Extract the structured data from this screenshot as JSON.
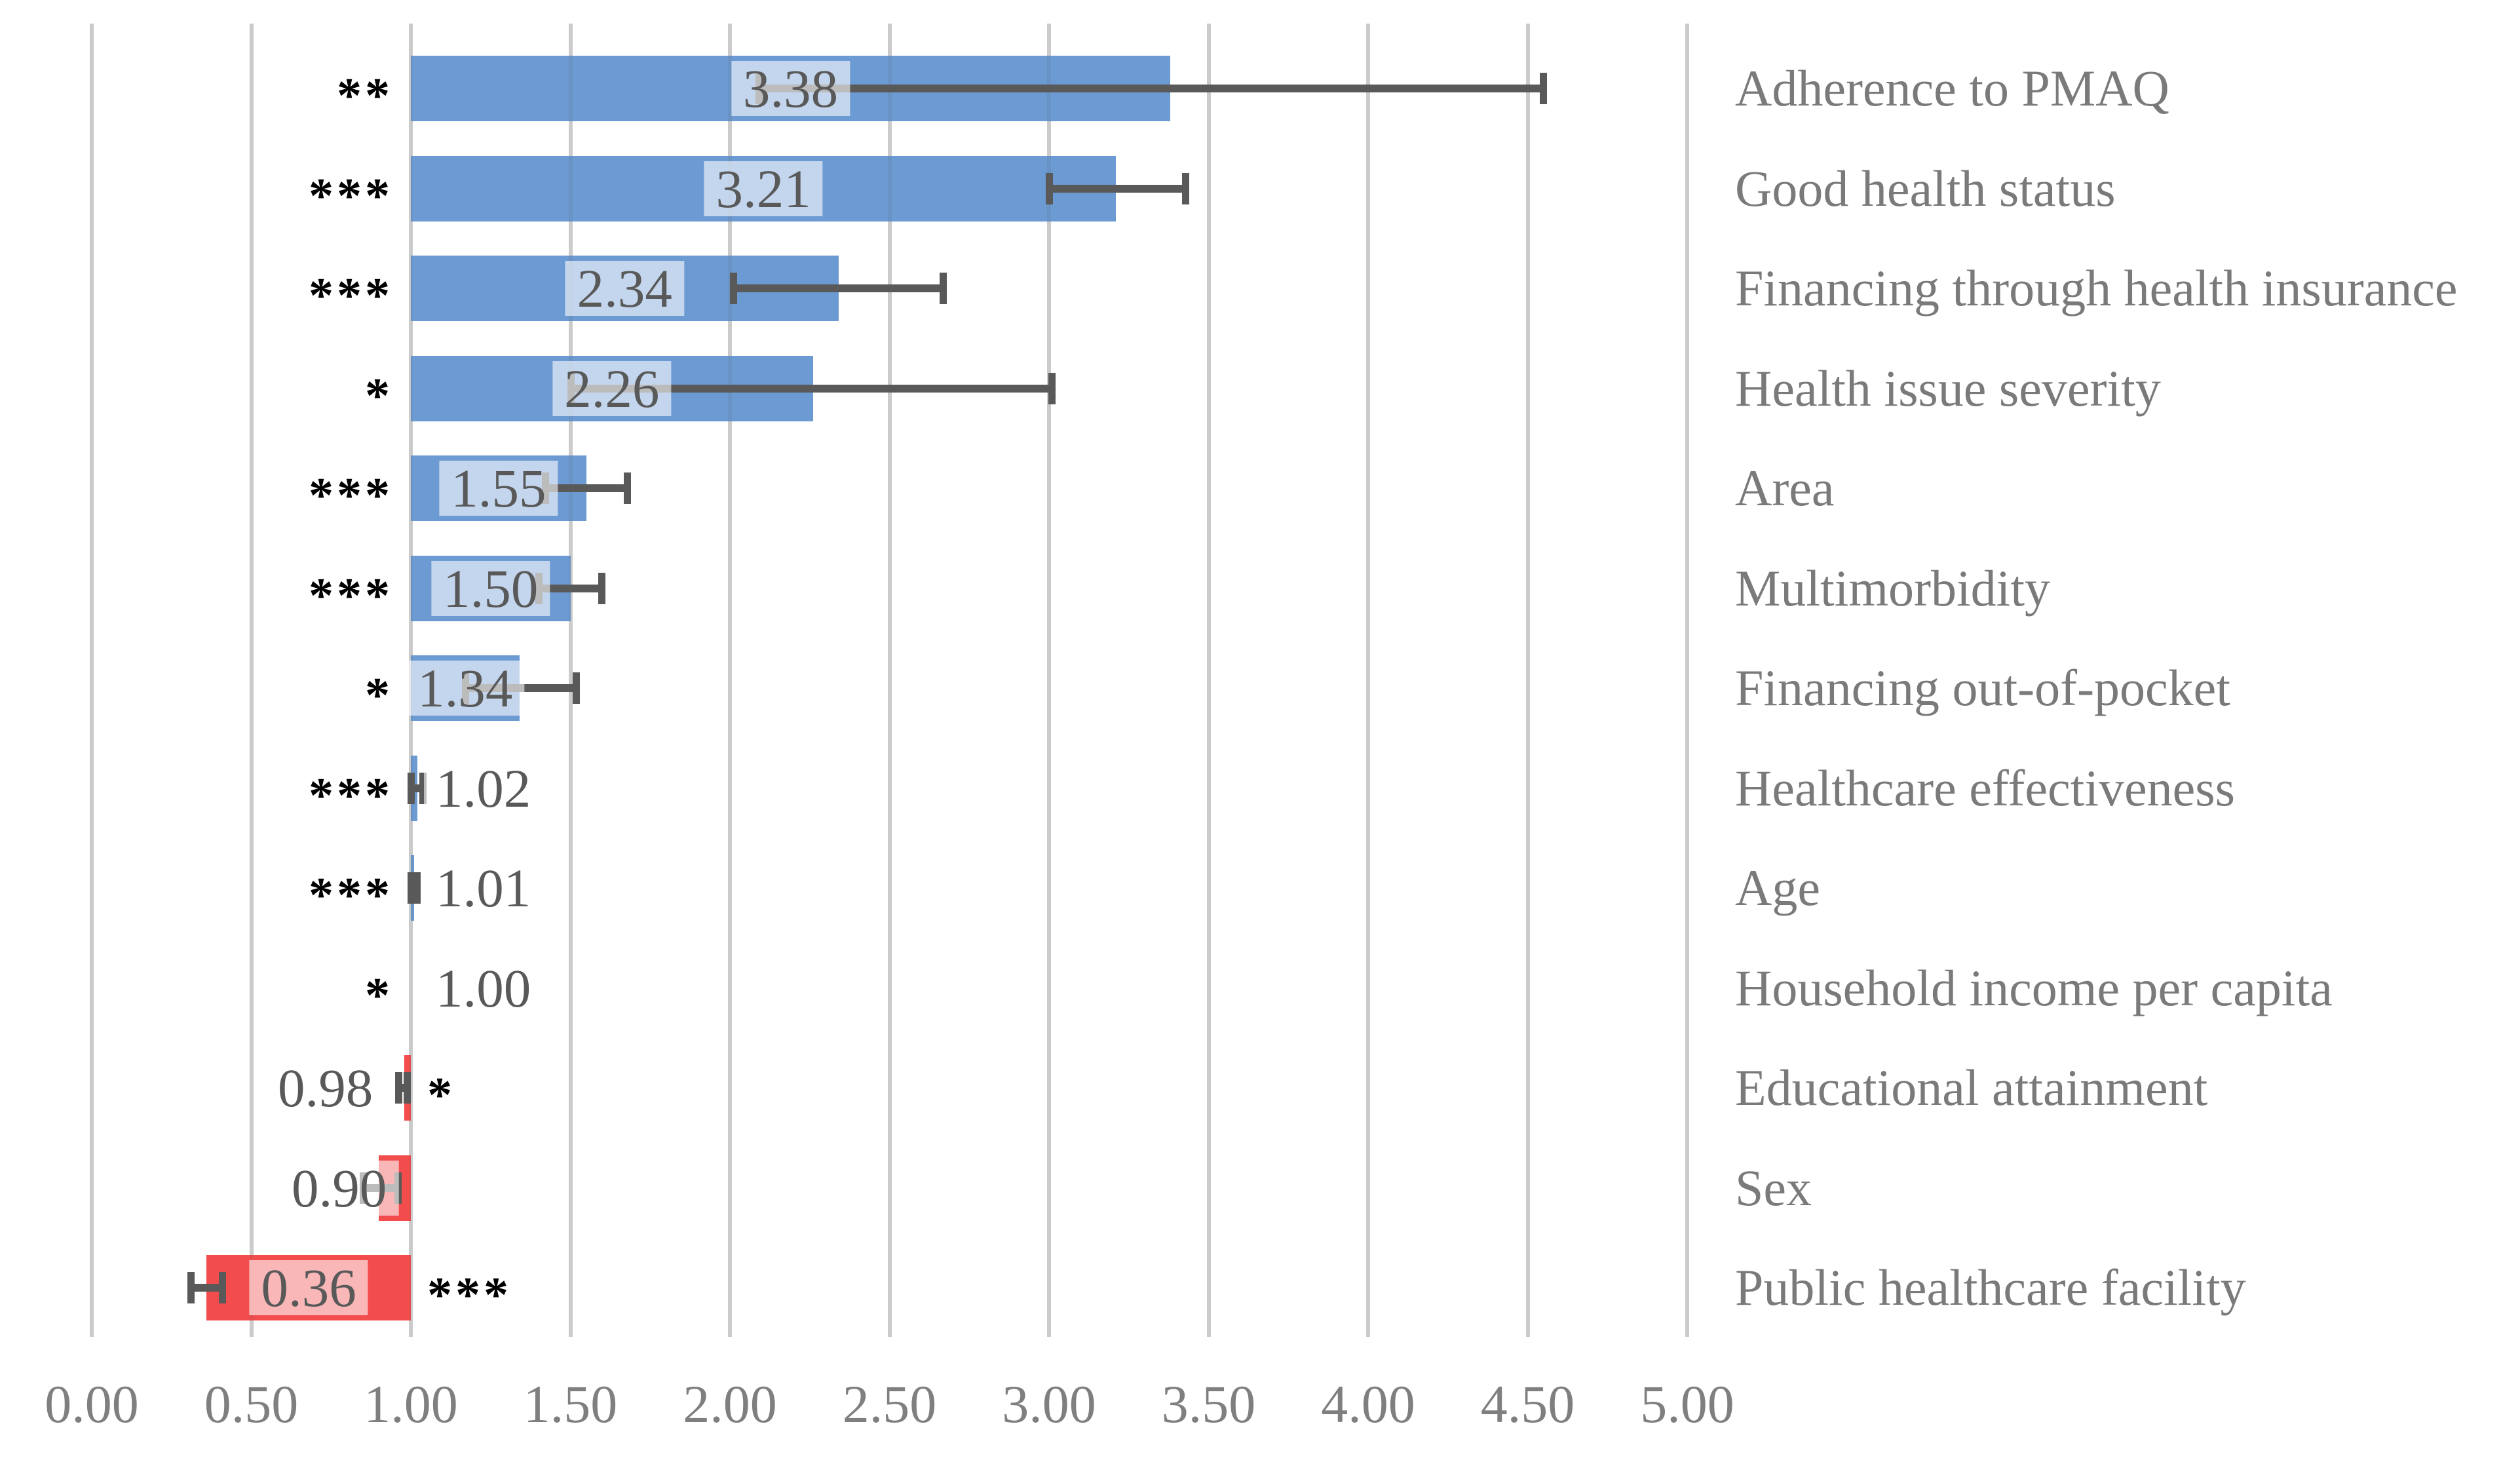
{
  "chart_data": {
    "type": "bar",
    "orientation": "horizontal",
    "title": "",
    "baseline": 1.0,
    "grid": true,
    "x_axis": {
      "min": 0,
      "max": 5,
      "step": 0.5,
      "tick_labels": [
        "0.00",
        "0.50",
        "1.00",
        "1.50",
        "2.00",
        "2.50",
        "3.00",
        "3.50",
        "4.00",
        "4.50",
        "5.00"
      ]
    },
    "colors": {
      "bar_positive": "#6C9AD2",
      "bar_negative": "#F34C4C",
      "error_bar": "#595959",
      "gridline": "#D9D9D9",
      "gridline_overlay": "rgba(89,89,89,0.10)",
      "value_text": "#595959",
      "axis_text": "#7F7F7F",
      "category_text": "#7A7A7A",
      "stars_text": "#000000",
      "value_label_bg": "rgba(255,255,255,0.60)"
    },
    "rows": [
      {
        "category": "Adherence to PMAQ",
        "value": 3.38,
        "value_label": "3.38",
        "ci_low": 2.09,
        "ci_high": 4.55,
        "stars": "**",
        "stars_side": "left",
        "value_label_pos": "inside",
        "value_label_dx": 0
      },
      {
        "category": "Good health status",
        "value": 3.21,
        "value_label": "3.21",
        "ci_low": 3.0,
        "ci_high": 3.43,
        "stars": "***",
        "stars_side": "left",
        "value_label_pos": "inside",
        "value_label_dx": 0
      },
      {
        "category": "Financing through health insurance",
        "value": 2.34,
        "value_label": "2.34",
        "ci_low": 2.01,
        "ci_high": 2.67,
        "stars": "***",
        "stars_side": "left",
        "value_label_pos": "inside",
        "value_label_dx": 0
      },
      {
        "category": "Health issue severity",
        "value": 2.26,
        "value_label": "2.26",
        "ci_low": 1.5,
        "ci_high": 3.01,
        "stars": "*",
        "stars_side": "left",
        "value_label_pos": "inside",
        "value_label_dx": 0
      },
      {
        "category": "Area",
        "value": 1.55,
        "value_label": "1.55",
        "ci_low": 1.42,
        "ci_high": 1.68,
        "stars": "***",
        "stars_side": "left",
        "value_label_pos": "inside",
        "value_label_dx": 0
      },
      {
        "category": "Multimorbidity",
        "value": 1.5,
        "value_label": "1.50",
        "ci_low": 1.4,
        "ci_high": 1.6,
        "stars": "***",
        "stars_side": "left",
        "value_label_pos": "inside",
        "value_label_dx": 0
      },
      {
        "category": "Financing out-of-pocket",
        "value": 1.34,
        "value_label": "1.34",
        "ci_low": 1.17,
        "ci_high": 1.52,
        "stars": "*",
        "stars_side": "left",
        "value_label_pos": "inside",
        "value_label_dx": 0
      },
      {
        "category": "Healthcare effectiveness",
        "value": 1.02,
        "value_label": "1.02",
        "ci_low": 1.0,
        "ci_high": 1.04,
        "stars": "***",
        "stars_side": "left",
        "value_label_pos": "after",
        "value_label_dx": 0
      },
      {
        "category": "Age",
        "value": 1.01,
        "value_label": "1.01",
        "ci_low": 1.0,
        "ci_high": 1.02,
        "stars": "***",
        "stars_side": "left",
        "value_label_pos": "after",
        "value_label_dx": 0
      },
      {
        "category": "Household income per capita",
        "value": 1.0,
        "value_label": "1.00",
        "ci_low": null,
        "ci_high": null,
        "stars": "*",
        "stars_side": "left",
        "value_label_pos": "after",
        "value_label_dx": 0
      },
      {
        "category": "Educational attainment",
        "value": 0.98,
        "value_label": "0.98",
        "ci_low": 0.96,
        "ci_high": 0.99,
        "stars": "*",
        "stars_side": "right",
        "value_label_pos": "before",
        "value_label_dx": -30
      },
      {
        "category": "Sex",
        "value": 0.9,
        "value_label": "0.90",
        "ci_low": 0.85,
        "ci_high": 0.96,
        "stars": "",
        "stars_side": "none",
        "value_label_pos": "before",
        "value_label_dx": 30
      },
      {
        "category": "Public healthcare facility",
        "value": 0.36,
        "value_label": "0.36",
        "ci_low": 0.31,
        "ci_high": 0.41,
        "stars": "***",
        "stars_side": "right",
        "value_label_pos": "inside",
        "value_label_dx": 0
      }
    ]
  }
}
